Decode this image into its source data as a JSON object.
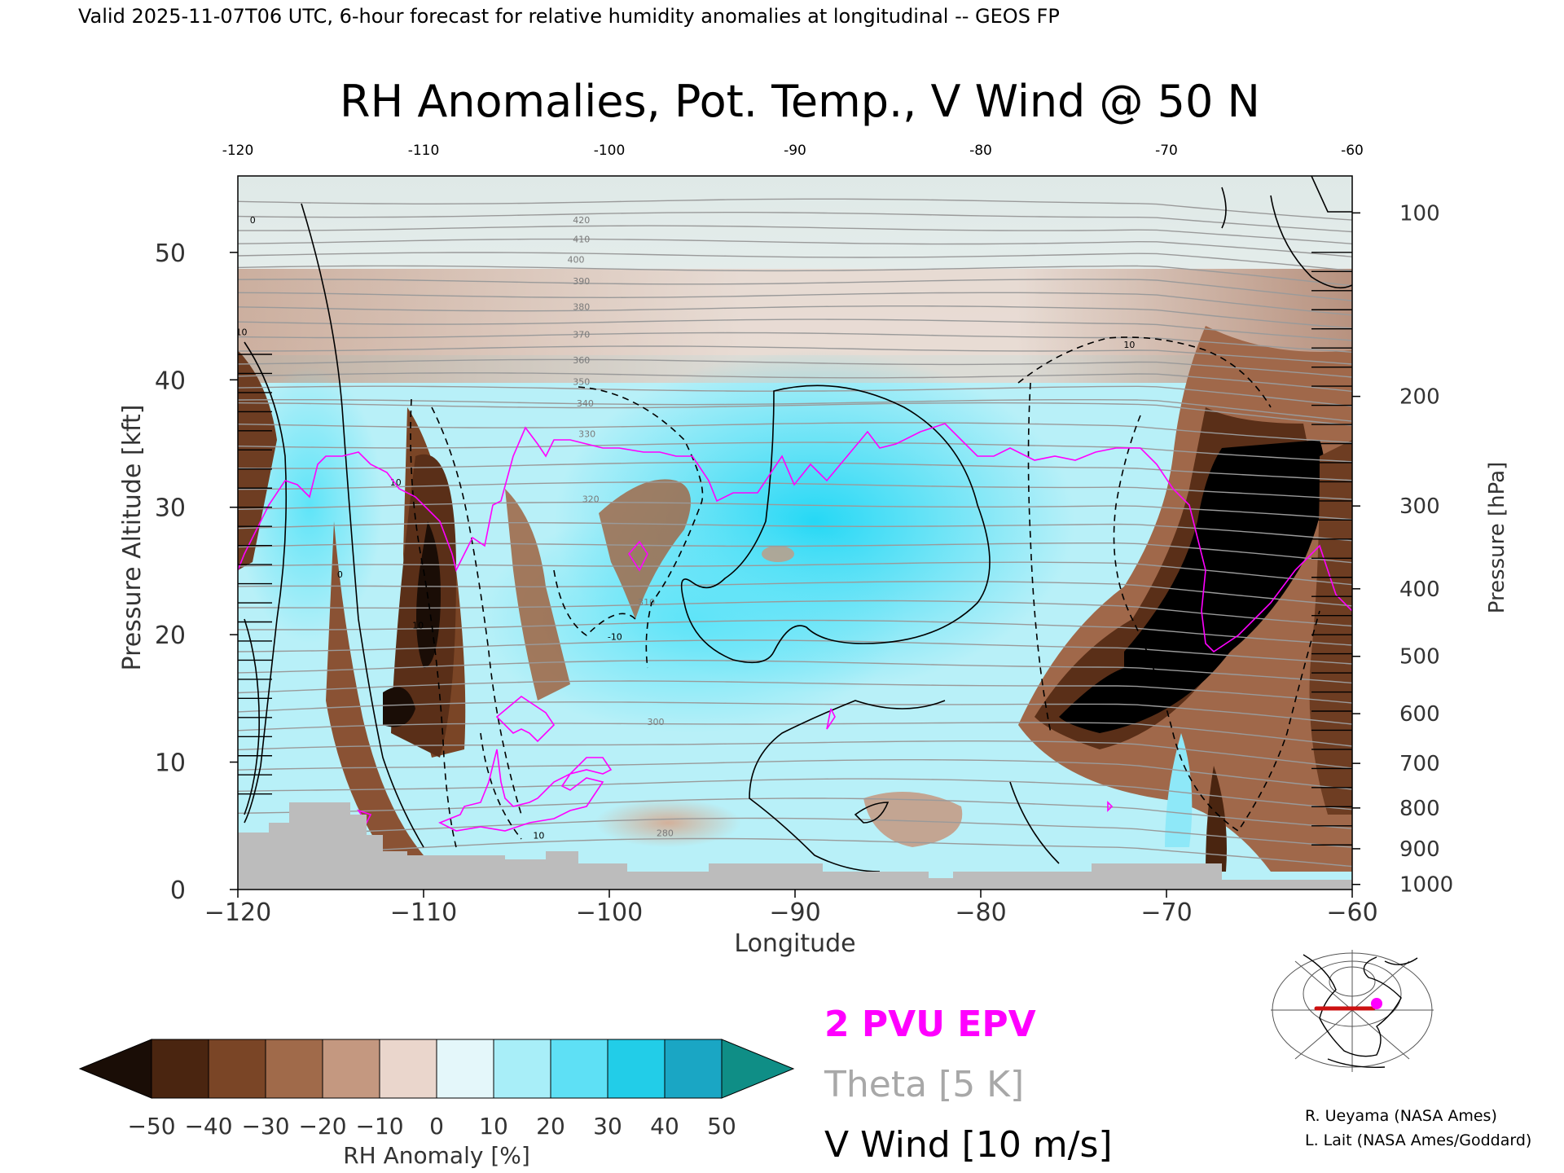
{
  "header": {
    "valid_line": "Valid 2025-11-07T06 UTC, 6-hour forecast for relative humidity anomalies at longitudinal -- GEOS FP"
  },
  "chart_data": {
    "type": "heatmap",
    "title": "RH Anomalies, Pot. Temp., V Wind @ 50 N",
    "xlabel": "Longitude",
    "ylabel_left": "Pressure Altitude [kft]",
    "ylabel_right": "Pressure [hPa]",
    "xlim": [
      -120,
      -60
    ],
    "ylim": [
      0,
      56
    ],
    "x_ticks": [
      -120,
      -110,
      -100,
      -90,
      -80,
      -70,
      -60
    ],
    "x_tick_labels": [
      "−120",
      "−110",
      "−100",
      "−90",
      "−80",
      "−70",
      "−60"
    ],
    "top_x_tick_labels": [
      "-120",
      "-110",
      "-100",
      "-90",
      "-80",
      "-70",
      "-60"
    ],
    "y_ticks": [
      0,
      10,
      20,
      30,
      40,
      50
    ],
    "pressure_ticks": [
      {
        "kft": 53.1,
        "label": "100"
      },
      {
        "kft": 38.7,
        "label": "200"
      },
      {
        "kft": 30.1,
        "label": "300"
      },
      {
        "kft": 23.6,
        "label": "400"
      },
      {
        "kft": 18.3,
        "label": "500"
      },
      {
        "kft": 13.8,
        "label": "600"
      },
      {
        "kft": 9.9,
        "label": "700"
      },
      {
        "kft": 6.4,
        "label": "800"
      },
      {
        "kft": 3.2,
        "label": "900"
      },
      {
        "kft": 0.4,
        "label": "1000"
      }
    ],
    "theta_labels": [
      {
        "lon": -101.5,
        "kft": 52.3,
        "text": "420"
      },
      {
        "lon": -101.5,
        "kft": 50.8,
        "text": "410"
      },
      {
        "lon": -101.8,
        "kft": 49.2,
        "text": "400"
      },
      {
        "lon": -101.5,
        "kft": 47.5,
        "text": "390"
      },
      {
        "lon": -101.5,
        "kft": 45.5,
        "text": "380"
      },
      {
        "lon": -101.5,
        "kft": 43.3,
        "text": "370"
      },
      {
        "lon": -101.5,
        "kft": 41.3,
        "text": "360"
      },
      {
        "lon": -101.5,
        "kft": 39.6,
        "text": "350"
      },
      {
        "lon": -101.3,
        "kft": 37.9,
        "text": "340"
      },
      {
        "lon": -101.2,
        "kft": 35.5,
        "text": "330"
      },
      {
        "lon": -101.0,
        "kft": 30.4,
        "text": "320"
      },
      {
        "lon": -98.0,
        "kft": 22.3,
        "text": "310"
      },
      {
        "lon": -97.5,
        "kft": 12.9,
        "text": "300"
      },
      {
        "lon": -97.0,
        "kft": 4.2,
        "text": "280"
      }
    ],
    "wind_labels": [
      {
        "lon": -119.2,
        "kft": 52.3,
        "text": "0"
      },
      {
        "lon": -119.8,
        "kft": 43.5,
        "text": "10"
      },
      {
        "lon": -111.5,
        "kft": 31.7,
        "text": "10"
      },
      {
        "lon": -114.5,
        "kft": 24.5,
        "text": "0"
      },
      {
        "lon": -110.3,
        "kft": 20.5,
        "text": "10"
      },
      {
        "lon": -99.7,
        "kft": 19.6,
        "text": "-10"
      },
      {
        "lon": -72.0,
        "kft": 42.5,
        "text": "10"
      },
      {
        "lon": -103.8,
        "kft": 4.0,
        "text": "10"
      }
    ],
    "colorbar": {
      "label": "RH Anomaly [%]",
      "ticks": [
        "−50",
        "−40",
        "−30",
        "−20",
        "−10",
        "0",
        "10",
        "20",
        "30",
        "40",
        "50"
      ],
      "levels": [
        -50,
        -40,
        -30,
        -20,
        -10,
        0,
        10,
        20,
        30,
        40,
        50
      ],
      "colors": [
        "#1a0d06",
        "#4a2510",
        "#7a4526",
        "#a06a4a",
        "#c49880",
        "#ead6cc",
        "#e4f7fa",
        "#a8eef8",
        "#5ee0f5",
        "#22cde8",
        "#1aa6c4",
        "#0e7585",
        "#0f8e86"
      ]
    },
    "legend": {
      "epv": "2 PVU EPV",
      "theta": "Theta [5 K]",
      "vwind": "V Wind [10 m/s]"
    },
    "overlay_colors": {
      "epv": "#ff00ff",
      "theta": "#9a9a9a",
      "vwind": "#000000",
      "terrain": "#bcbcbc",
      "route": "#cc1111"
    }
  },
  "credits": {
    "line1": "R. Ueyama (NASA Ames)",
    "line2": "L. Lait (NASA Ames/Goddard)"
  }
}
